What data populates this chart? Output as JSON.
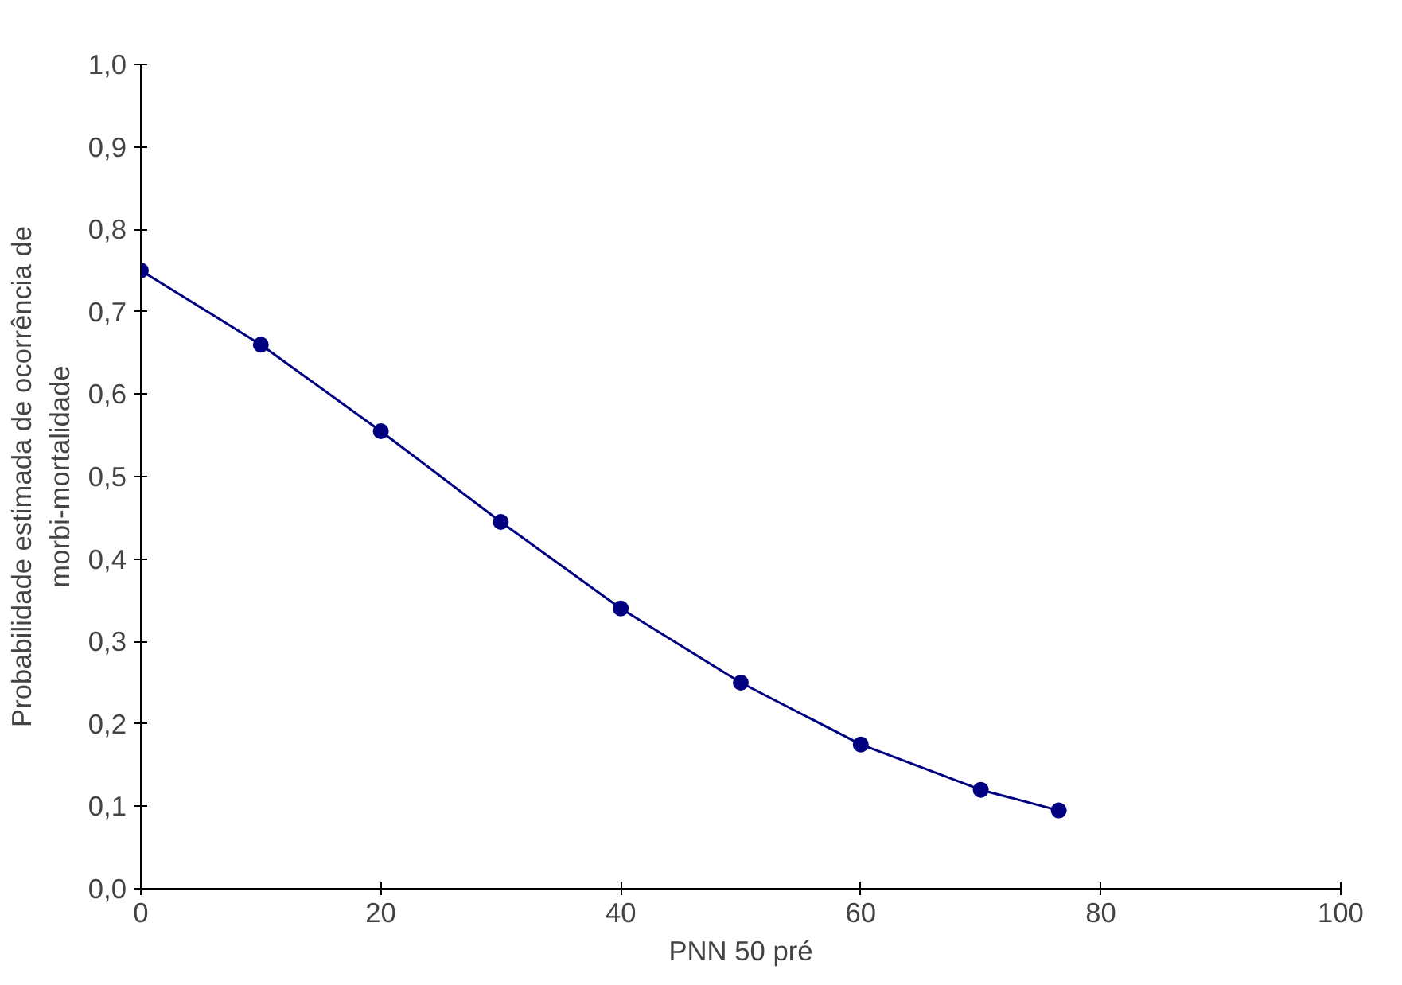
{
  "chart_data": {
    "type": "line",
    "xlabel": "PNN 50 pré",
    "ylabel": "Probabilidade estimada de ocorrência de\nmorbi-mortalidade",
    "x": [
      0,
      10,
      20,
      30,
      40,
      50,
      60,
      70,
      76.5
    ],
    "series": [
      {
        "color": "#000080",
        "values": [
          0.75,
          0.66,
          0.555,
          0.445,
          0.34,
          0.25,
          0.175,
          0.12,
          0.095
        ]
      }
    ],
    "marker": "circle",
    "line_style": "solid",
    "grid": false,
    "xlim": [
      0,
      100
    ],
    "xticks": [
      0,
      20,
      40,
      60,
      80,
      100
    ],
    "ylim": [
      0,
      1
    ],
    "yticks": [
      {
        "value": 0,
        "label": "0,0"
      },
      {
        "value": 0.1,
        "label": "0,1"
      },
      {
        "value": 0.2,
        "label": "0,2"
      },
      {
        "value": 0.3,
        "label": "0,3"
      },
      {
        "value": 0.4,
        "label": "0,4"
      },
      {
        "value": 0.5,
        "label": "0,5"
      },
      {
        "value": 0.6,
        "label": "0,6"
      },
      {
        "value": 0.7,
        "label": "0,7"
      },
      {
        "value": 0.8,
        "label": "0,8"
      },
      {
        "value": 0.9,
        "label": "0,9"
      },
      {
        "value": 1,
        "label": "1,0"
      }
    ]
  }
}
